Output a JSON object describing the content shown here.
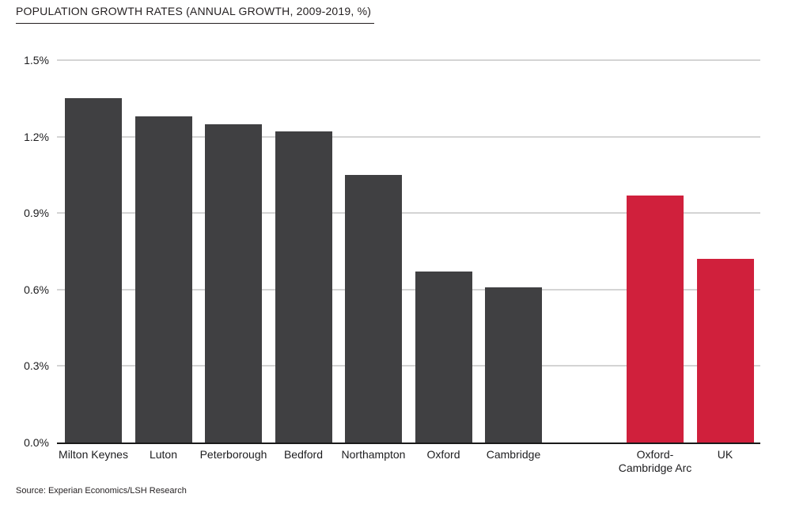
{
  "header": {
    "title": "POPULATION GROWTH RATES (ANNUAL GROWTH, 2009-2019, %)"
  },
  "footer": {
    "source": "Source: Experian Economics/LSH Research"
  },
  "colors": {
    "bar_dark": "#404042",
    "bar_highlight": "#d0203c",
    "gridline": "#d4d4d4",
    "axis": "#1a1a1a",
    "text": "#1d1d1f"
  },
  "chart_data": {
    "type": "bar",
    "title": "POPULATION GROWTH RATES (ANNUAL GROWTH, 2009-2019, %)",
    "categories": [
      "Milton Keynes",
      "Luton",
      "Peterborough",
      "Bedford",
      "Northampton",
      "Oxford",
      "Cambridge",
      "Oxford-Cambridge Arc",
      "UK"
    ],
    "values": [
      1.35,
      1.28,
      1.25,
      1.22,
      1.05,
      0.67,
      0.61,
      0.97,
      0.72
    ],
    "bar_color_roles": [
      "dark",
      "dark",
      "dark",
      "dark",
      "dark",
      "dark",
      "dark",
      "highlight",
      "highlight"
    ],
    "unit": "%",
    "xlabel": "",
    "ylabel": "",
    "ylim": [
      0,
      1.5
    ],
    "ytick_labels": [
      "0.0%",
      "0.3%",
      "0.6%",
      "0.9%",
      "1.2%",
      "1.5%"
    ],
    "grid": true,
    "legend": false,
    "annotations": [],
    "notes": "Two visually separated groups: seven dark local-authority bars, then a gap, then two highlighted (red) aggregate bars."
  }
}
